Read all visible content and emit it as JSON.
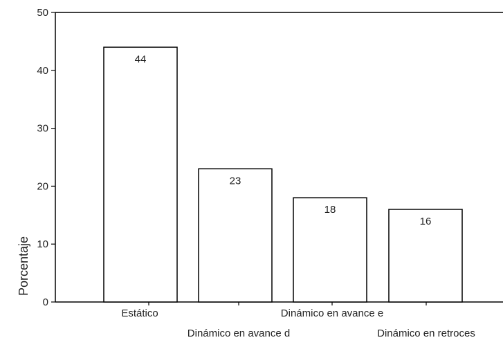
{
  "chart_data": {
    "type": "bar",
    "categories": [
      "Estático",
      "Dinámico en avance d",
      "Dinámico en avance e",
      "Dinámico en retroces"
    ],
    "values": [
      44,
      23,
      18,
      16
    ],
    "data_labels": [
      "44",
      "23",
      "18",
      "16"
    ],
    "title": "",
    "xlabel": "",
    "ylabel": "Porcentaje",
    "ylim": [
      0,
      50
    ],
    "yticks": [
      0,
      10,
      20,
      30,
      40,
      50
    ],
    "ytick_labels": [
      "0",
      "10",
      "20",
      "30",
      "40",
      "50"
    ],
    "grid": false,
    "legend": "none",
    "bar_fill": "#ffffff",
    "bar_stroke": "#000000"
  }
}
